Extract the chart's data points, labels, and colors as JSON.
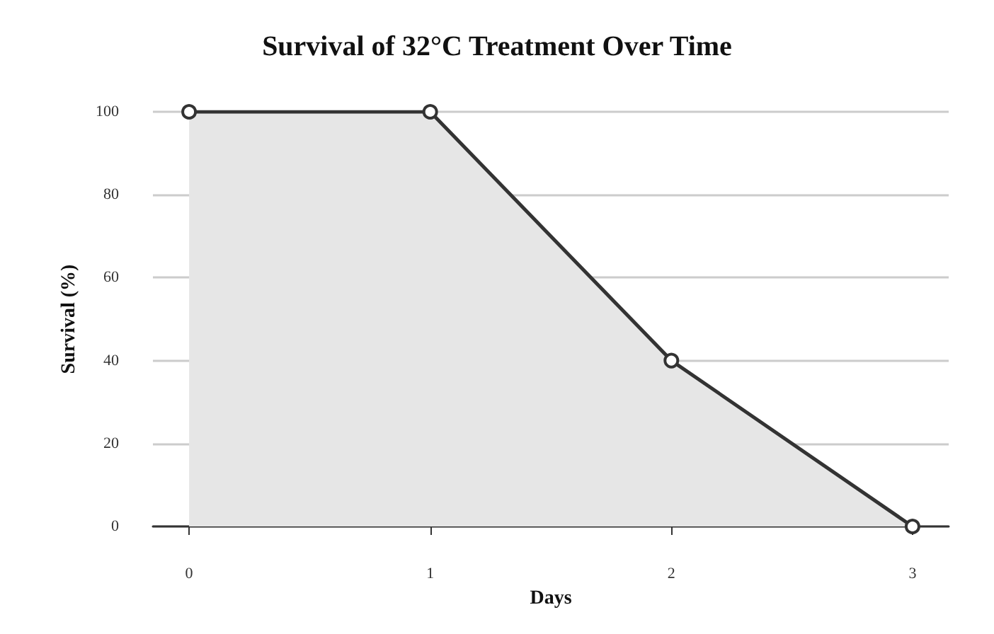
{
  "chart_data": {
    "type": "area",
    "title": "Survival of 32°C Treatment Over Time",
    "xlabel": "Days",
    "ylabel": "Survival (%)",
    "x": [
      0,
      1,
      2,
      3
    ],
    "series": [
      {
        "color": "#333333",
        "values": [
          100,
          100,
          40,
          0
        ]
      }
    ],
    "xlim": [
      -0.15,
      3.15
    ],
    "xticks": [
      0,
      1,
      2,
      3
    ],
    "ylim": [
      0,
      100
    ],
    "yticks": [
      0,
      20,
      40,
      60,
      80,
      100
    ],
    "grid": "y",
    "marker": "circle",
    "line_style": "solid"
  }
}
